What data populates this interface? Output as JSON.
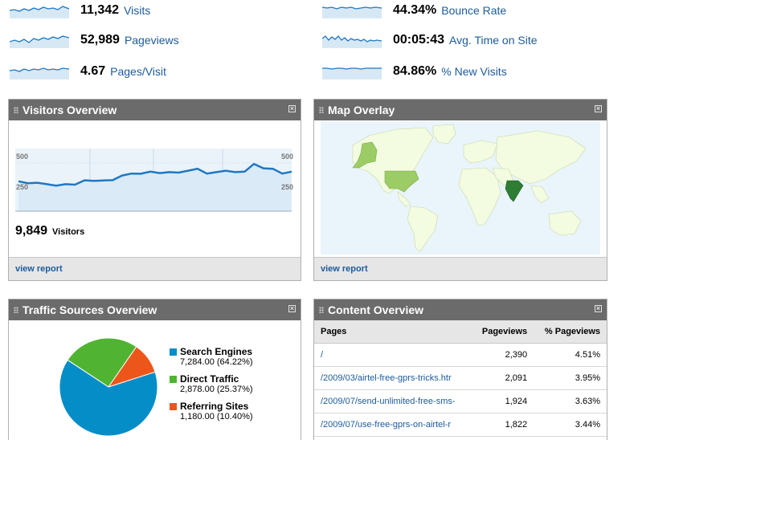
{
  "metrics": [
    {
      "value": "11,342",
      "label": "Visits"
    },
    {
      "value": "52,989",
      "label": "Pageviews"
    },
    {
      "value": "4.67",
      "label": "Pages/Visit"
    },
    {
      "value": "44.34%",
      "label": "Bounce Rate"
    },
    {
      "value": "00:05:43",
      "label": "Avg. Time on Site"
    },
    {
      "value": "84.86%",
      "label": "% New Visits"
    }
  ],
  "visitors_overview": {
    "title": "Visitors Overview",
    "total": "9,849",
    "total_label": "Visitors",
    "link": "view report",
    "chart_data": {
      "type": "area",
      "y_ticks": [
        "500",
        "250"
      ],
      "ylim": [
        0,
        650
      ],
      "values": [
        310,
        290,
        295,
        280,
        265,
        280,
        275,
        320,
        315,
        318,
        322,
        370,
        390,
        388,
        410,
        395,
        405,
        400,
        420,
        440,
        390,
        405,
        420,
        405,
        410,
        490,
        445,
        440,
        390,
        410
      ]
    }
  },
  "map_overlay": {
    "title": "Map Overlay",
    "link": "view report"
  },
  "traffic_sources": {
    "title": "Traffic Sources Overview",
    "chart_data": {
      "type": "pie",
      "slices": [
        {
          "name": "Search Engines",
          "value": 7284.0,
          "label": "7,284.00 (64.22%)",
          "color": "#058dc7"
        },
        {
          "name": "Direct Traffic",
          "value": 2878.0,
          "label": "2,878.00 (25.37%)",
          "color": "#50b432"
        },
        {
          "name": "Referring Sites",
          "value": 1180.0,
          "label": "1,180.00 (10.40%)",
          "color": "#ed561b"
        }
      ]
    }
  },
  "content_overview": {
    "title": "Content Overview",
    "headers": {
      "pages": "Pages",
      "pageviews": "Pageviews",
      "pct": "% Pageviews"
    },
    "rows": [
      {
        "page": "/",
        "pageviews": "2,390",
        "pct": "4.51%"
      },
      {
        "page": "/2009/03/airtel-free-gprs-tricks.htr",
        "pageviews": "2,091",
        "pct": "3.95%"
      },
      {
        "page": "/2009/07/send-unlimited-free-sms-",
        "pageviews": "1,924",
        "pct": "3.63%"
      },
      {
        "page": "/2009/07/use-free-gprs-on-airtel-r",
        "pageviews": "1,822",
        "pct": "3.44%"
      }
    ]
  },
  "colors": {
    "header": "#6b6b6b",
    "link": "#1c5b9c",
    "spark_line": "#1f78c1",
    "spark_fill": "#d7e8f5",
    "map_highlight": "#2e7d32",
    "map_light": "#9ccc65"
  }
}
